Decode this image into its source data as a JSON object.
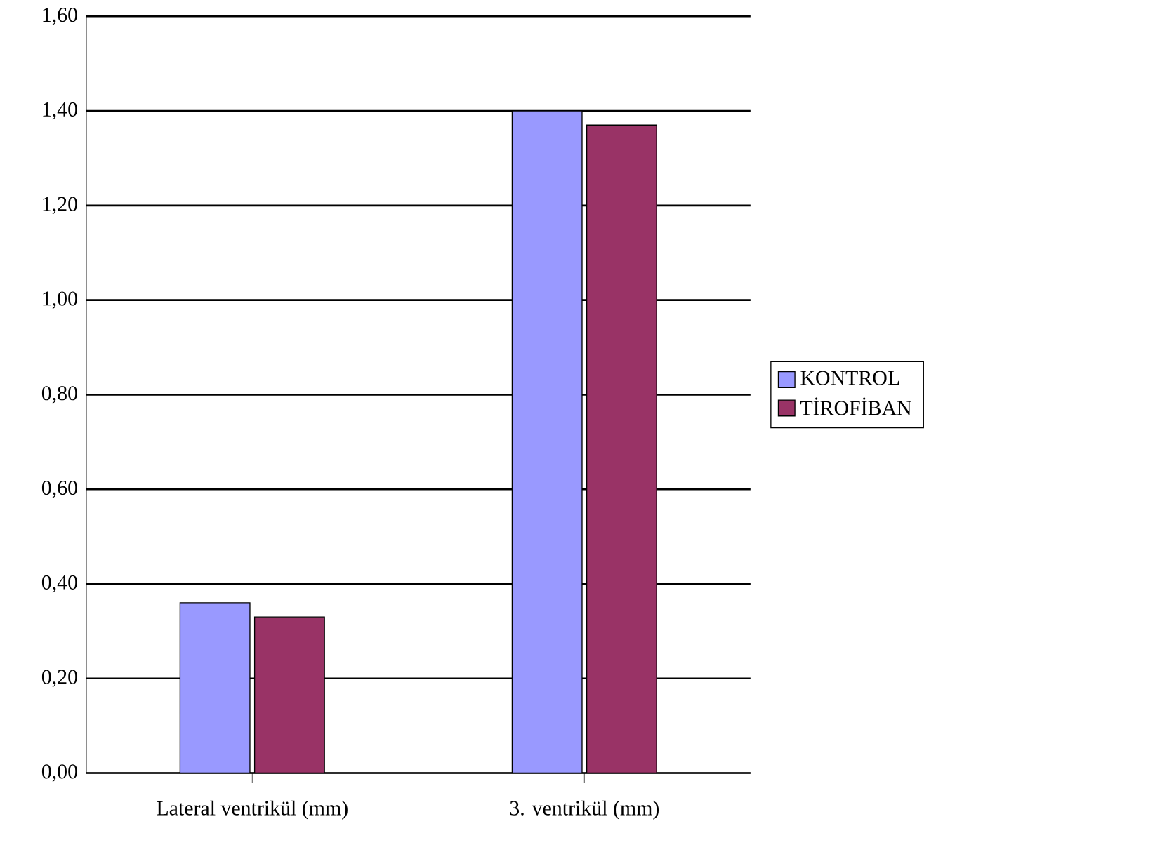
{
  "chart_data": {
    "type": "bar",
    "categories": [
      "Lateral ventrikül (mm)",
      "3. ventrikül (mm)"
    ],
    "series": [
      {
        "name": "KONTROL",
        "color": "#9999ff",
        "values": [
          0.36,
          1.4
        ]
      },
      {
        "name": "TİROFİBAN",
        "color": "#993366",
        "values": [
          0.33,
          1.37
        ]
      }
    ],
    "ylim": [
      0,
      1.6
    ],
    "yticks": [
      {
        "value": 0,
        "label": "0,00"
      },
      {
        "value": 0.2,
        "label": "0,20"
      },
      {
        "value": 0.4,
        "label": "0,40"
      },
      {
        "value": 0.6,
        "label": "0,60"
      },
      {
        "value": 0.8,
        "label": "0,80"
      },
      {
        "value": 1.0,
        "label": "1,00"
      },
      {
        "value": 1.2,
        "label": "1,20"
      },
      {
        "value": 1.4,
        "label": "1,40"
      },
      {
        "value": 1.6,
        "label": "1,60"
      }
    ],
    "grid": "y",
    "legend": "right"
  }
}
